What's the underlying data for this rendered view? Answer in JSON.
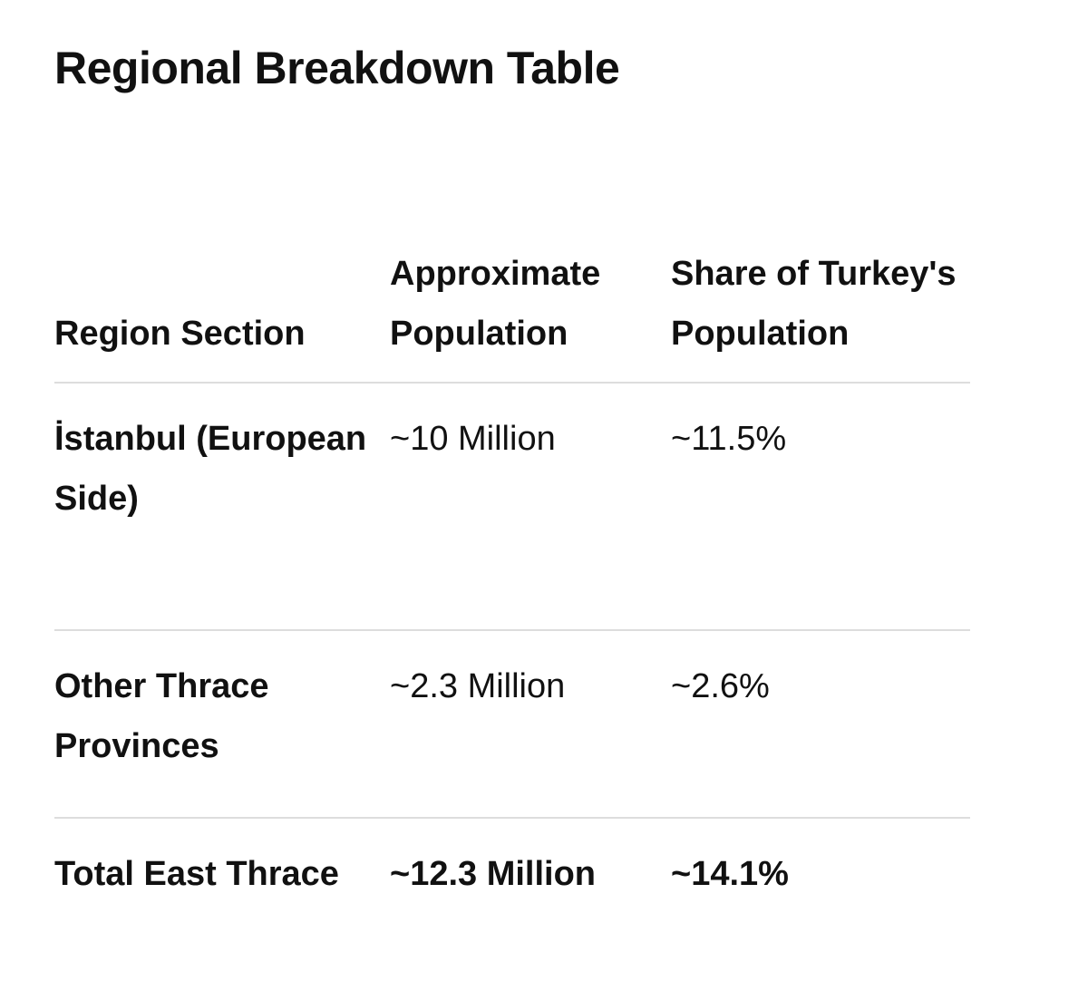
{
  "title": "Regional Breakdown Table",
  "table": {
    "headers": [
      "Region Section",
      "Approximate Population",
      "Share of Turkey's Population"
    ],
    "rows": [
      [
        "İstanbul (European Side)",
        "~10 Million",
        "~11.5%"
      ],
      [
        "Other Thrace Provinces",
        "~2.3 Million",
        "~2.6%"
      ],
      [
        "Total East Thrace",
        "~12.3 Million",
        "~14.1%"
      ]
    ]
  }
}
